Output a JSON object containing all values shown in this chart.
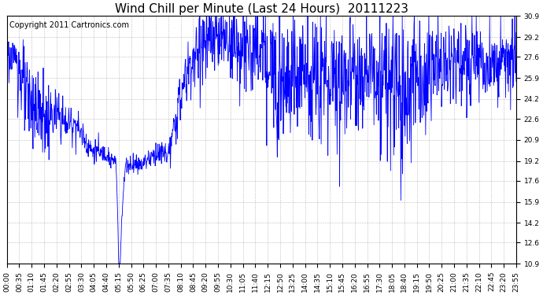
{
  "title": "Wind Chill per Minute (Last 24 Hours)  20111223",
  "copyright_text": "Copyright 2011 Cartronics.com",
  "line_color": "#0000FF",
  "background_color": "#FFFFFF",
  "plot_bg_color": "#FFFFFF",
  "grid_color": "#AAAAAA",
  "yticks": [
    10.9,
    12.6,
    14.2,
    15.9,
    17.6,
    19.2,
    20.9,
    22.6,
    24.2,
    25.9,
    27.6,
    29.2,
    30.9
  ],
  "ylim": [
    10.9,
    30.9
  ],
  "xtick_labels": [
    "00:00",
    "00:35",
    "01:10",
    "01:45",
    "02:20",
    "02:55",
    "03:30",
    "04:05",
    "04:40",
    "05:15",
    "05:50",
    "06:25",
    "07:00",
    "07:35",
    "08:10",
    "08:45",
    "09:20",
    "09:55",
    "10:30",
    "11:05",
    "11:40",
    "12:15",
    "12:50",
    "13:25",
    "14:00",
    "14:35",
    "15:10",
    "15:45",
    "16:20",
    "16:55",
    "17:30",
    "18:05",
    "18:40",
    "19:15",
    "19:50",
    "20:25",
    "21:00",
    "21:35",
    "22:10",
    "22:45",
    "23:20",
    "23:55"
  ],
  "title_fontsize": 11,
  "copyright_fontsize": 7,
  "tick_fontsize": 6.5
}
